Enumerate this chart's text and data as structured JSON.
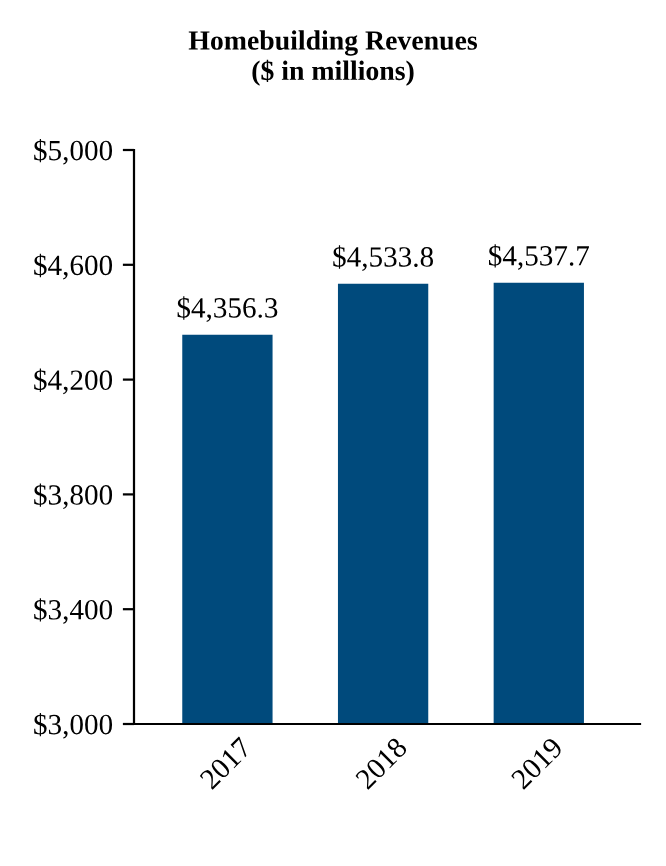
{
  "chart_data": {
    "type": "bar",
    "title": "Homebuilding Revenues\n($ in millions)",
    "categories": [
      "2017",
      "2018",
      "2019"
    ],
    "values": [
      4356.3,
      4533.8,
      4537.7
    ],
    "value_labels": [
      "$4,356.3",
      "$4,533.8",
      "$4,537.7"
    ],
    "color": "#004a7c",
    "ylim": [
      3000,
      5000
    ],
    "yticks": [
      {
        "value": 3000,
        "label": "$3,000"
      },
      {
        "value": 3400,
        "label": "$3,400"
      },
      {
        "value": 3800,
        "label": "$3,800"
      },
      {
        "value": 4200,
        "label": "$4,200"
      },
      {
        "value": 4600,
        "label": "$4,600"
      },
      {
        "value": 5000,
        "label": "$5,000"
      }
    ],
    "grid": false,
    "legend": false
  }
}
